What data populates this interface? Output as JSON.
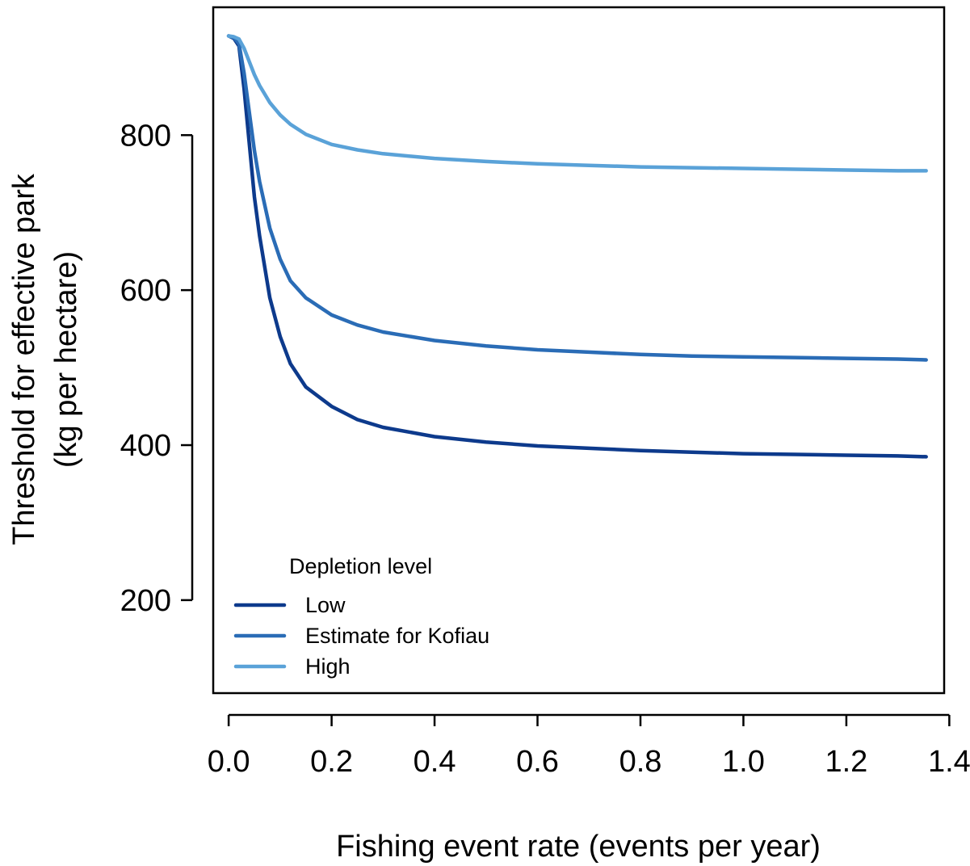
{
  "chart_data": {
    "type": "line",
    "title": "",
    "xlabel": "Fishing event rate (events per year)",
    "ylabel_lines": [
      "Threshold for effective park",
      "(kg per hectare)"
    ],
    "xlim": [
      -0.03,
      1.39
    ],
    "ylim": [
      80,
      965
    ],
    "x_ticks": [
      0.0,
      0.2,
      0.4,
      0.6,
      0.8,
      1.0,
      1.2,
      1.4
    ],
    "x_tick_labels": [
      "0.0",
      "0.2",
      "0.4",
      "0.6",
      "0.8",
      "1.0",
      "1.2",
      "1.4"
    ],
    "y_ticks": [
      200,
      400,
      600,
      800
    ],
    "y_tick_labels": [
      "200",
      "400",
      "600",
      "800"
    ],
    "grid": false,
    "legend": {
      "title": "Depletion level",
      "placement": "bottom-left"
    },
    "series": [
      {
        "name": "Low",
        "color": "#0d3a8c",
        "points": [
          [
            0.0,
            928
          ],
          [
            0.01,
            925
          ],
          [
            0.02,
            915
          ],
          [
            0.03,
            860
          ],
          [
            0.04,
            790
          ],
          [
            0.05,
            720
          ],
          [
            0.06,
            670
          ],
          [
            0.08,
            590
          ],
          [
            0.1,
            540
          ],
          [
            0.12,
            505
          ],
          [
            0.15,
            475
          ],
          [
            0.2,
            450
          ],
          [
            0.25,
            433
          ],
          [
            0.3,
            423
          ],
          [
            0.4,
            411
          ],
          [
            0.5,
            404
          ],
          [
            0.6,
            399
          ],
          [
            0.7,
            396
          ],
          [
            0.8,
            393
          ],
          [
            0.9,
            391
          ],
          [
            1.0,
            389
          ],
          [
            1.1,
            388
          ],
          [
            1.2,
            387
          ],
          [
            1.3,
            386
          ],
          [
            1.355,
            385
          ]
        ]
      },
      {
        "name": "Estimate for Kofiau",
        "color": "#2a6cb6",
        "points": [
          [
            0.0,
            928
          ],
          [
            0.01,
            926
          ],
          [
            0.02,
            918
          ],
          [
            0.03,
            880
          ],
          [
            0.04,
            830
          ],
          [
            0.05,
            780
          ],
          [
            0.06,
            740
          ],
          [
            0.08,
            680
          ],
          [
            0.1,
            640
          ],
          [
            0.12,
            612
          ],
          [
            0.15,
            590
          ],
          [
            0.2,
            568
          ],
          [
            0.25,
            555
          ],
          [
            0.3,
            546
          ],
          [
            0.4,
            535
          ],
          [
            0.5,
            528
          ],
          [
            0.6,
            523
          ],
          [
            0.7,
            520
          ],
          [
            0.8,
            517
          ],
          [
            0.9,
            515
          ],
          [
            1.0,
            514
          ],
          [
            1.1,
            513
          ],
          [
            1.2,
            512
          ],
          [
            1.3,
            511
          ],
          [
            1.355,
            510
          ]
        ]
      },
      {
        "name": "High",
        "color": "#5aa2d8",
        "points": [
          [
            0.0,
            928
          ],
          [
            0.01,
            927
          ],
          [
            0.02,
            924
          ],
          [
            0.03,
            912
          ],
          [
            0.04,
            895
          ],
          [
            0.05,
            878
          ],
          [
            0.06,
            864
          ],
          [
            0.08,
            842
          ],
          [
            0.1,
            826
          ],
          [
            0.12,
            814
          ],
          [
            0.15,
            801
          ],
          [
            0.2,
            788
          ],
          [
            0.25,
            781
          ],
          [
            0.3,
            776
          ],
          [
            0.4,
            770
          ],
          [
            0.5,
            766
          ],
          [
            0.6,
            763
          ],
          [
            0.7,
            761
          ],
          [
            0.8,
            759
          ],
          [
            0.9,
            758
          ],
          [
            1.0,
            757
          ],
          [
            1.1,
            756
          ],
          [
            1.2,
            755
          ],
          [
            1.3,
            754
          ],
          [
            1.355,
            754
          ]
        ]
      }
    ]
  }
}
